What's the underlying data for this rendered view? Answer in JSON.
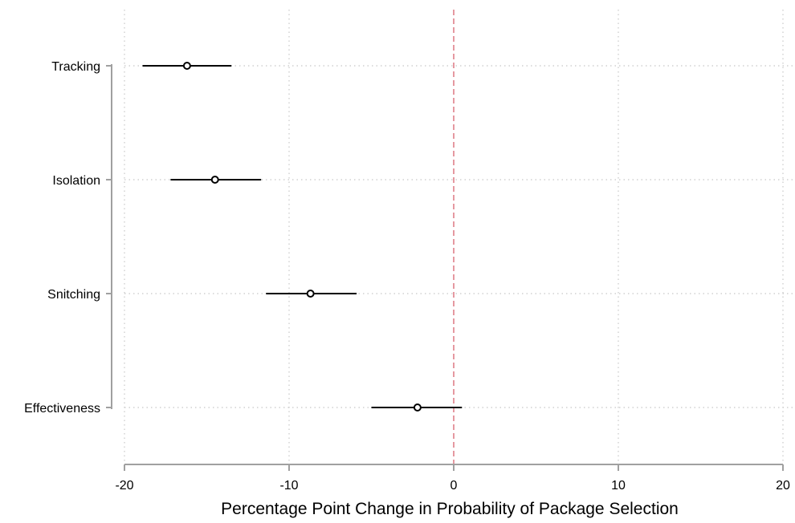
{
  "chart_data": {
    "type": "scatter",
    "subtype": "coefficient-plot-with-confidence-intervals",
    "title": "",
    "xlabel": "Percentage Point Change in Probability of Package Selection",
    "ylabel": "",
    "xlim": [
      -20,
      20
    ],
    "xticks": [
      -20,
      -10,
      0,
      10,
      20
    ],
    "xtick_labels": [
      "-20",
      "-10",
      "0",
      "10",
      "20"
    ],
    "categories": [
      "Tracking",
      "Isolation",
      "Snitching",
      "Effectiveness"
    ],
    "series": [
      {
        "points": [
          {
            "category": "Tracking",
            "estimate": -16.2,
            "ci_low": -18.9,
            "ci_high": -13.5
          },
          {
            "category": "Isolation",
            "estimate": -14.5,
            "ci_low": -17.2,
            "ci_high": -11.7
          },
          {
            "category": "Snitching",
            "estimate": -8.7,
            "ci_low": -11.4,
            "ci_high": -5.9
          },
          {
            "category": "Effectiveness",
            "estimate": -2.2,
            "ci_low": -5.0,
            "ci_high": 0.5
          }
        ]
      }
    ],
    "reference_line": {
      "x": 0,
      "style": "dashed",
      "color": "#e0808a"
    },
    "grid": true,
    "legend": "none",
    "colors": {
      "marker": "#000000",
      "axis": "#a0a0a0",
      "grid": "#c8c8c8"
    }
  }
}
